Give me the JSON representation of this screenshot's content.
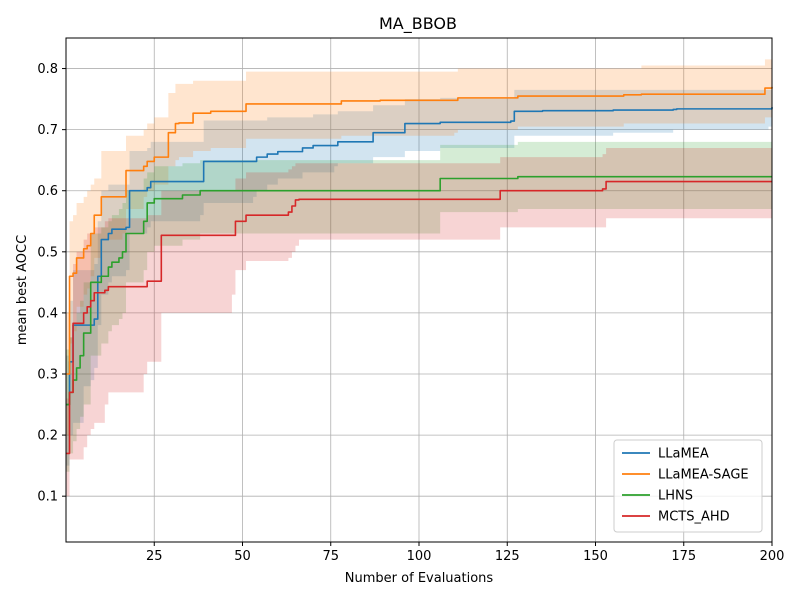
{
  "chart_data": {
    "type": "line",
    "title": "MA_BBOB",
    "xlabel": "Number of Evaluations",
    "ylabel": "mean best AOCC",
    "xlim": [
      0,
      200
    ],
    "ylim": [
      0.025,
      0.85
    ],
    "xticks": [
      25,
      50,
      75,
      100,
      125,
      150,
      175,
      200
    ],
    "yticks": [
      0.1,
      0.2,
      0.3,
      0.4,
      0.5,
      0.6,
      0.7,
      0.8
    ],
    "grid": true,
    "legend_position": "lower-right",
    "series": [
      {
        "name": "LLaMEA",
        "color": "#1f77b4",
        "x": [
          0,
          1,
          2,
          5,
          7,
          8,
          9,
          10,
          12,
          13,
          17,
          18,
          20,
          23,
          24,
          38,
          39,
          53,
          54,
          56,
          57,
          60,
          66,
          67,
          68,
          70,
          71,
          76,
          77,
          86,
          87,
          95,
          96,
          105,
          106,
          126,
          127,
          130,
          135,
          155,
          172,
          173,
          199,
          200
        ],
        "y": [
          0.25,
          0.32,
          0.38,
          0.38,
          0.38,
          0.39,
          0.46,
          0.52,
          0.53,
          0.537,
          0.54,
          0.6,
          0.6,
          0.605,
          0.615,
          0.615,
          0.648,
          0.648,
          0.655,
          0.655,
          0.66,
          0.664,
          0.664,
          0.67,
          0.67,
          0.674,
          0.674,
          0.674,
          0.68,
          0.68,
          0.695,
          0.695,
          0.71,
          0.71,
          0.712,
          0.714,
          0.73,
          0.73,
          0.731,
          0.732,
          0.733,
          0.734,
          0.734,
          0.737
        ],
        "lower": [
          0.15,
          0.2,
          0.22,
          0.28,
          0.29,
          0.31,
          0.38,
          0.43,
          0.45,
          0.46,
          0.47,
          0.53,
          0.53,
          0.54,
          0.55,
          0.56,
          0.58,
          0.59,
          0.6,
          0.6,
          0.61,
          0.62,
          0.62,
          0.63,
          0.63,
          0.63,
          0.63,
          0.64,
          0.645,
          0.645,
          0.655,
          0.655,
          0.665,
          0.665,
          0.67,
          0.67,
          0.69,
          0.69,
          0.69,
          0.695,
          0.7,
          0.7,
          0.705,
          0.71
        ],
        "upper": [
          0.33,
          0.42,
          0.47,
          0.47,
          0.47,
          0.48,
          0.55,
          0.6,
          0.61,
          0.61,
          0.61,
          0.665,
          0.665,
          0.67,
          0.68,
          0.68,
          0.715,
          0.715,
          0.715,
          0.715,
          0.72,
          0.72,
          0.72,
          0.72,
          0.72,
          0.725,
          0.725,
          0.725,
          0.73,
          0.73,
          0.74,
          0.74,
          0.75,
          0.75,
          0.752,
          0.752,
          0.765,
          0.765,
          0.765,
          0.765,
          0.765,
          0.765,
          0.765,
          0.77
        ]
      },
      {
        "name": "LLaMEA-SAGE",
        "color": "#ff7f0e",
        "x": [
          0,
          1,
          2,
          3,
          5,
          6,
          7,
          8,
          9,
          10,
          16,
          17,
          19,
          22,
          23,
          24,
          25,
          28,
          29,
          31,
          32,
          35,
          36,
          40,
          41,
          50,
          51,
          77,
          78,
          89,
          110,
          111,
          127,
          128,
          155,
          158,
          163,
          197,
          198,
          200
        ],
        "y": [
          0.3,
          0.46,
          0.465,
          0.49,
          0.505,
          0.51,
          0.53,
          0.56,
          0.56,
          0.59,
          0.59,
          0.633,
          0.633,
          0.64,
          0.648,
          0.648,
          0.655,
          0.655,
          0.695,
          0.71,
          0.711,
          0.711,
          0.727,
          0.727,
          0.73,
          0.73,
          0.742,
          0.742,
          0.747,
          0.748,
          0.748,
          0.752,
          0.752,
          0.755,
          0.755,
          0.757,
          0.758,
          0.758,
          0.768,
          0.77
        ],
        "lower": [
          0.2,
          0.35,
          0.37,
          0.41,
          0.43,
          0.44,
          0.46,
          0.49,
          0.49,
          0.52,
          0.53,
          0.57,
          0.57,
          0.59,
          0.6,
          0.6,
          0.61,
          0.61,
          0.64,
          0.65,
          0.655,
          0.655,
          0.665,
          0.665,
          0.67,
          0.67,
          0.685,
          0.685,
          0.69,
          0.69,
          0.695,
          0.7,
          0.7,
          0.705,
          0.705,
          0.71,
          0.71,
          0.71,
          0.72,
          0.725
        ],
        "upper": [
          0.4,
          0.55,
          0.56,
          0.58,
          0.59,
          0.6,
          0.61,
          0.62,
          0.62,
          0.665,
          0.665,
          0.69,
          0.69,
          0.7,
          0.71,
          0.71,
          0.72,
          0.72,
          0.76,
          0.775,
          0.775,
          0.775,
          0.78,
          0.78,
          0.78,
          0.78,
          0.795,
          0.795,
          0.795,
          0.795,
          0.795,
          0.8,
          0.8,
          0.8,
          0.8,
          0.8,
          0.805,
          0.805,
          0.815,
          0.815
        ]
      },
      {
        "name": "LHNS",
        "color": "#2ca02c",
        "x": [
          0,
          1,
          2,
          3,
          4,
          5,
          6,
          7,
          9,
          10,
          12,
          13,
          15,
          16,
          17,
          21,
          22,
          23,
          25,
          32,
          33,
          37,
          38,
          105,
          106,
          127,
          128,
          200
        ],
        "y": [
          0.25,
          0.27,
          0.29,
          0.31,
          0.33,
          0.367,
          0.367,
          0.45,
          0.45,
          0.46,
          0.475,
          0.483,
          0.49,
          0.5,
          0.53,
          0.53,
          0.55,
          0.58,
          0.587,
          0.587,
          0.593,
          0.593,
          0.6,
          0.6,
          0.62,
          0.62,
          0.623,
          0.623
        ],
        "lower": [
          0.14,
          0.17,
          0.19,
          0.21,
          0.23,
          0.25,
          0.25,
          0.33,
          0.33,
          0.35,
          0.37,
          0.38,
          0.39,
          0.4,
          0.45,
          0.45,
          0.47,
          0.5,
          0.51,
          0.51,
          0.52,
          0.52,
          0.53,
          0.53,
          0.565,
          0.565,
          0.57,
          0.57
        ],
        "upper": [
          0.34,
          0.36,
          0.38,
          0.4,
          0.42,
          0.45,
          0.45,
          0.53,
          0.53,
          0.54,
          0.55,
          0.56,
          0.57,
          0.58,
          0.6,
          0.6,
          0.62,
          0.63,
          0.64,
          0.64,
          0.645,
          0.645,
          0.65,
          0.65,
          0.675,
          0.675,
          0.68,
          0.68
        ]
      },
      {
        "name": "MCTS_AHD",
        "color": "#d62728",
        "x": [
          0,
          1,
          2,
          3,
          5,
          6,
          7,
          8,
          10,
          11,
          12,
          22,
          23,
          26,
          27,
          47,
          48,
          50,
          51,
          62,
          63,
          64,
          65,
          66,
          122,
          123,
          152,
          153,
          200
        ],
        "y": [
          0.17,
          0.27,
          0.383,
          0.383,
          0.4,
          0.41,
          0.42,
          0.433,
          0.433,
          0.437,
          0.443,
          0.443,
          0.452,
          0.452,
          0.527,
          0.527,
          0.55,
          0.55,
          0.56,
          0.56,
          0.565,
          0.575,
          0.585,
          0.586,
          0.586,
          0.6,
          0.603,
          0.615,
          0.615
        ],
        "lower": [
          0.1,
          0.16,
          0.16,
          0.16,
          0.18,
          0.2,
          0.21,
          0.22,
          0.22,
          0.25,
          0.27,
          0.3,
          0.32,
          0.32,
          0.4,
          0.43,
          0.47,
          0.47,
          0.485,
          0.485,
          0.49,
          0.5,
          0.51,
          0.52,
          0.52,
          0.54,
          0.54,
          0.555,
          0.555
        ],
        "upper": [
          0.26,
          0.36,
          0.48,
          0.5,
          0.52,
          0.53,
          0.53,
          0.54,
          0.54,
          0.55,
          0.555,
          0.555,
          0.56,
          0.56,
          0.6,
          0.6,
          0.62,
          0.62,
          0.63,
          0.63,
          0.635,
          0.64,
          0.645,
          0.645,
          0.645,
          0.655,
          0.66,
          0.67,
          0.67
        ]
      }
    ]
  }
}
